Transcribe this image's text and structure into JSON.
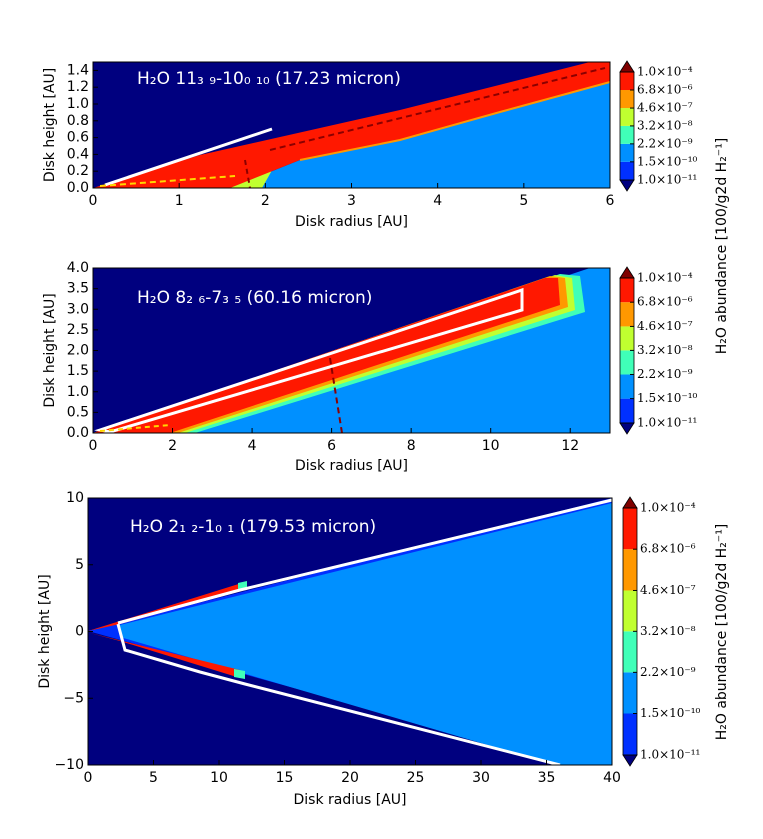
{
  "chart_data": [
    {
      "type": "contour",
      "title": "H₂O 11₃ ₉-10₀ ₁₀ (17.23 micron)",
      "xlabel": "Disk radius [AU]",
      "ylabel": "Disk height [AU]",
      "xlim": [
        0,
        6
      ],
      "ylim": [
        0,
        1.5
      ],
      "xticks": [
        0,
        1,
        2,
        3,
        4,
        5,
        6
      ],
      "yticks": [
        {
          "value": 0,
          "label": "0.0"
        },
        {
          "value": 0.2,
          "label": "0.2"
        },
        {
          "value": 0.4,
          "label": "0.4"
        },
        {
          "value": 0.6,
          "label": "0.6"
        },
        {
          "value": 0.8,
          "label": "0.8"
        },
        {
          "value": 1.0,
          "label": "1.0"
        },
        {
          "value": 1.2,
          "label": "1.2"
        },
        {
          "value": 1.4,
          "label": "1.4"
        }
      ],
      "colorbar": {
        "log": true,
        "colors": [
          "#00007f",
          "#0030ff",
          "#0090ff",
          "#40ffb8",
          "#c0ff30",
          "#ff9800",
          "#ff1800",
          "#7f0000"
        ],
        "ticks": [
          {
            "value": 1e-11,
            "label": "1.0×10⁻¹¹"
          },
          {
            "value": 1.5e-10,
            "label": "1.5×10⁻¹⁰"
          },
          {
            "value": 2.2e-09,
            "label": "2.2×10⁻⁹"
          },
          {
            "value": 3.2e-08,
            "label": "3.2×10⁻⁸"
          },
          {
            "value": 4.6e-07,
            "label": "4.6×10⁻⁷"
          },
          {
            "value": 6.8e-06,
            "label": "6.8×10⁻⁶"
          },
          {
            "value": 0.0001,
            "label": "1.0×10⁻⁴"
          }
        ]
      }
    },
    {
      "type": "contour",
      "title": "H₂O 8₂ ₆-7₃ ₅ (60.16 micron)",
      "xlabel": "Disk radius [AU]",
      "ylabel": "Disk height [AU]",
      "xlim": [
        0,
        13
      ],
      "ylim": [
        0,
        4
      ],
      "xticks": [
        0,
        2,
        4,
        6,
        8,
        10,
        12
      ],
      "yticks": [
        {
          "value": 0,
          "label": "0.0"
        },
        {
          "value": 0.5,
          "label": "0.5"
        },
        {
          "value": 1.0,
          "label": "1.0"
        },
        {
          "value": 1.5,
          "label": "1.5"
        },
        {
          "value": 2.0,
          "label": "2.0"
        },
        {
          "value": 2.5,
          "label": "2.5"
        },
        {
          "value": 3.0,
          "label": "3.0"
        },
        {
          "value": 3.5,
          "label": "3.5"
        },
        {
          "value": 4.0,
          "label": "4.0"
        }
      ],
      "colorbar": {
        "log": true,
        "label": "H₂O abundance [100/g2d H₂⁻¹]",
        "colors": [
          "#00007f",
          "#0030ff",
          "#0090ff",
          "#40ffb8",
          "#c0ff30",
          "#ff9800",
          "#ff1800",
          "#7f0000"
        ],
        "ticks": [
          {
            "value": 1e-11,
            "label": "1.0×10⁻¹¹"
          },
          {
            "value": 1.5e-10,
            "label": "1.5×10⁻¹⁰"
          },
          {
            "value": 2.2e-09,
            "label": "2.2×10⁻⁹"
          },
          {
            "value": 3.2e-08,
            "label": "3.2×10⁻⁸"
          },
          {
            "value": 4.6e-07,
            "label": "4.6×10⁻⁷"
          },
          {
            "value": 6.8e-06,
            "label": "6.8×10⁻⁶"
          },
          {
            "value": 0.0001,
            "label": "1.0×10⁻⁴"
          }
        ]
      }
    },
    {
      "type": "contour",
      "title": "H₂O 2₁ ₂-1₀ ₁ (179.53 micron)",
      "xlabel": "Disk radius [AU]",
      "ylabel": "Disk height [AU]",
      "xlim": [
        0,
        40
      ],
      "ylim": [
        -10,
        10
      ],
      "xticks": [
        0,
        5,
        10,
        15,
        20,
        25,
        30,
        35,
        40
      ],
      "yticks": [
        {
          "value": -10,
          "label": "−10"
        },
        {
          "value": -5,
          "label": "−5"
        },
        0,
        5,
        10
      ],
      "colorbar": {
        "log": true,
        "label": "H₂O abundance [100/g2d H₂⁻¹]",
        "colors": [
          "#00007f",
          "#0030ff",
          "#0090ff",
          "#40ffb8",
          "#c0ff30",
          "#ff9800",
          "#ff1800",
          "#7f0000"
        ],
        "ticks": [
          {
            "value": 1e-11,
            "label": "1.0×10⁻¹¹"
          },
          {
            "value": 1.5e-10,
            "label": "1.5×10⁻¹⁰"
          },
          {
            "value": 2.2e-09,
            "label": "2.2×10⁻⁹"
          },
          {
            "value": 3.2e-08,
            "label": "3.2×10⁻⁸"
          },
          {
            "value": 4.6e-07,
            "label": "4.6×10⁻⁷"
          },
          {
            "value": 6.8e-06,
            "label": "6.8×10⁻⁶"
          },
          {
            "value": 0.0001,
            "label": "1.0×10⁻⁴"
          }
        ]
      }
    }
  ]
}
